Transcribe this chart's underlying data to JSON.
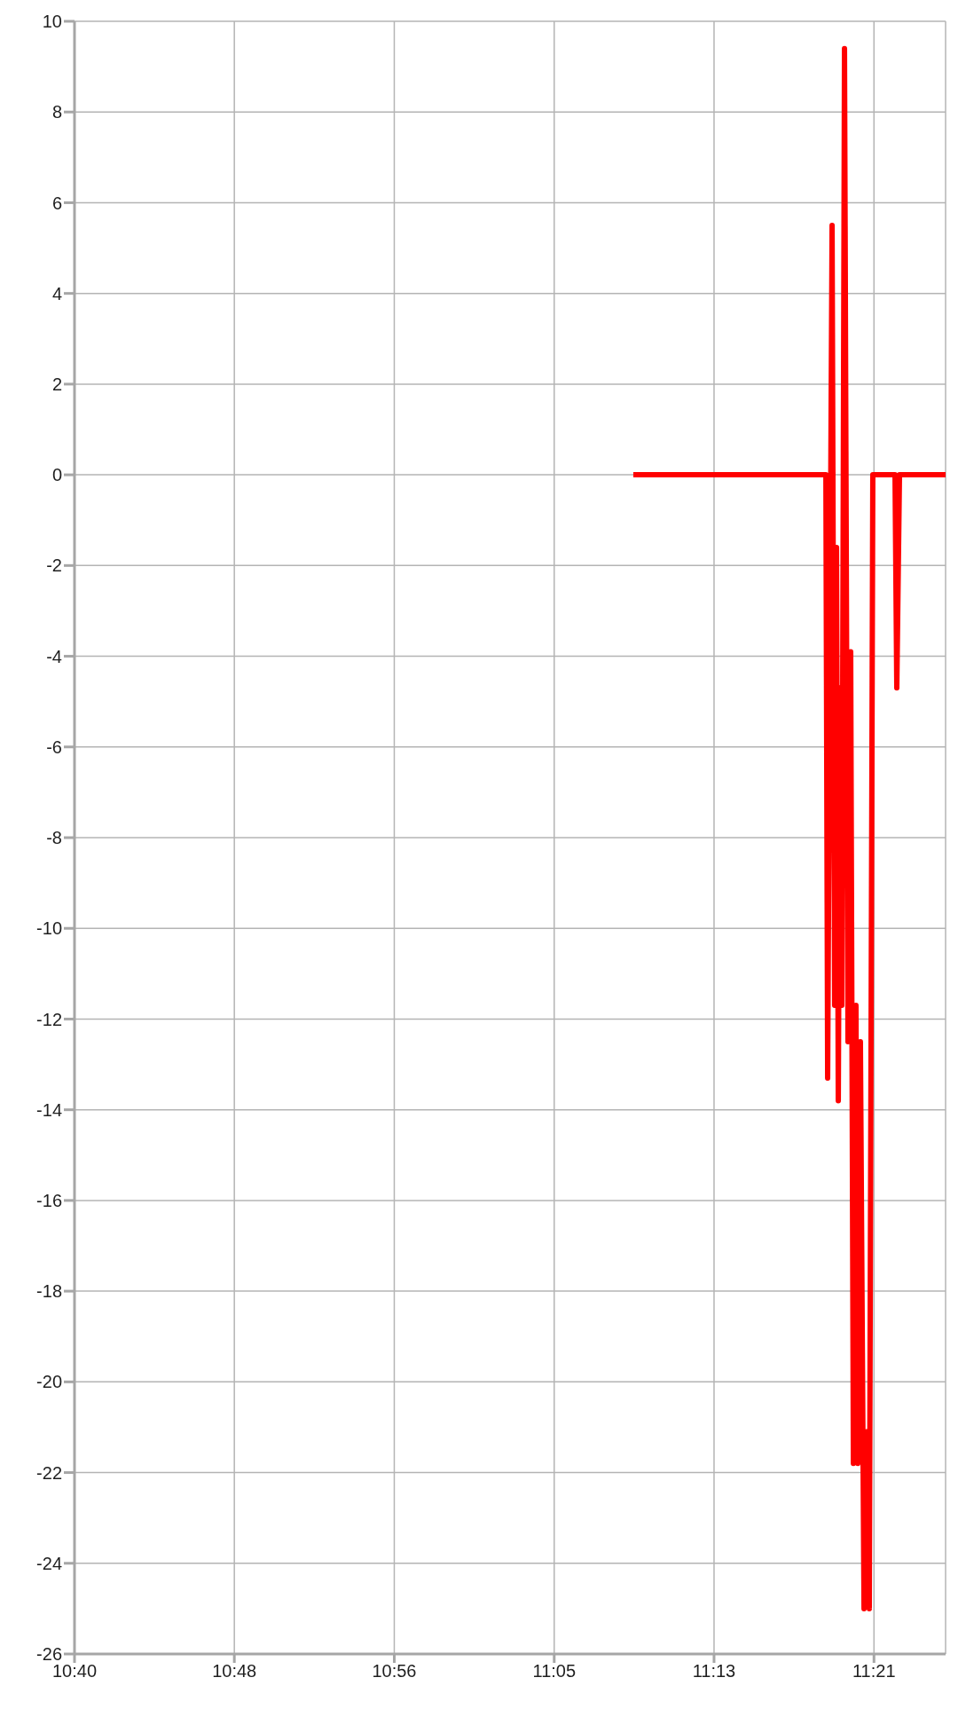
{
  "chart_data": {
    "type": "line",
    "x": [
      11.1443,
      11.3089,
      11.3104,
      11.3142,
      11.3164,
      11.318,
      11.3195,
      11.321,
      11.3225,
      11.3248,
      11.3278,
      11.3301,
      11.3324,
      11.3346,
      11.3362,
      11.3384,
      11.3415,
      11.3437,
      11.346,
      11.349,
      11.368,
      11.3695,
      11.3718,
      11.4112
    ],
    "series": [
      {
        "color": "#ff0000",
        "values": [
          0,
          0,
          -13.3,
          5.5,
          -11.7,
          -1.6,
          -13.8,
          -4.7,
          -11.7,
          9.4,
          -12.5,
          -3.9,
          -21.8,
          -11.7,
          -21.8,
          -12.5,
          -25.0,
          -21.1,
          -25.0,
          0,
          0,
          -4.7,
          0,
          0
        ]
      }
    ],
    "xlim": [
      10.6667,
      11.4112
    ],
    "xticks": [
      {
        "value": 10.6667,
        "label": "10:40"
      },
      {
        "value": 10.8033,
        "label": "10:48"
      },
      {
        "value": 10.94,
        "label": "10:56"
      },
      {
        "value": 11.0767,
        "label": "11:05"
      },
      {
        "value": 11.2133,
        "label": "11:13"
      },
      {
        "value": 11.35,
        "label": "11:21"
      }
    ],
    "ylim": [
      -26,
      10
    ],
    "yticks": [
      10,
      8,
      6,
      4,
      2,
      0,
      -2,
      -4,
      -6,
      -8,
      -10,
      -12,
      -14,
      -16,
      -18,
      -20,
      -22,
      -24,
      -26
    ],
    "grid": true,
    "line_style": "solid"
  }
}
